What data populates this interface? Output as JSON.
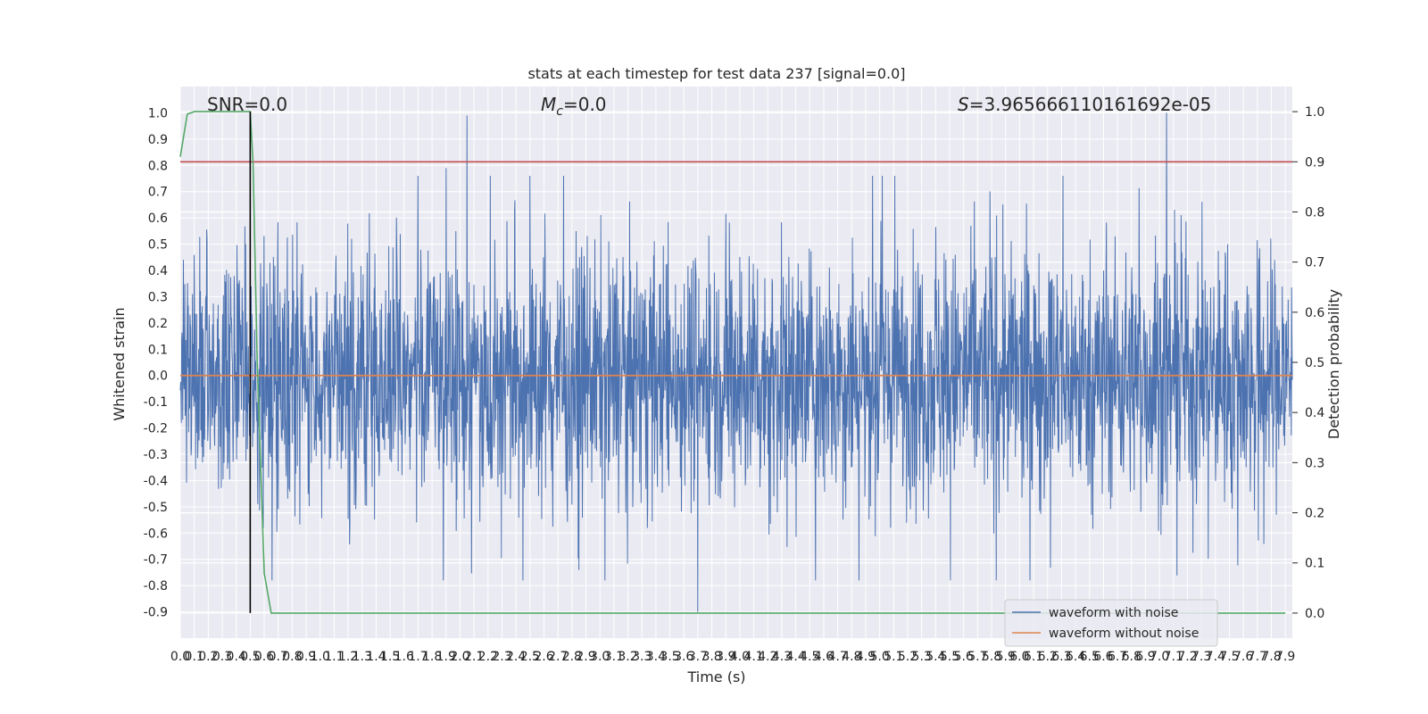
{
  "chart_data": {
    "type": "line",
    "title": "stats at each timestep for test data 237 [signal=0.0]",
    "xlabel": "Time (s)",
    "ylabel": "Whitened strain",
    "ylabel_right": "Detection probability",
    "xlim": [
      0.0,
      7.95
    ],
    "ylim": [
      -1.0,
      1.1
    ],
    "ylim_right": [
      -0.05,
      1.05
    ],
    "x_ticks": [
      "0.0",
      "0.1",
      "0.2",
      "0.3",
      "0.4",
      "0.5",
      "0.6",
      "0.7",
      "0.8",
      "0.9",
      "1.0",
      "1.1",
      "1.2",
      "1.3",
      "1.4",
      "1.5",
      "1.6",
      "1.7",
      "1.8",
      "1.9",
      "2.0",
      "2.1",
      "2.2",
      "2.3",
      "2.4",
      "2.5",
      "2.6",
      "2.7",
      "2.8",
      "2.9",
      "3.0",
      "3.1",
      "3.2",
      "3.3",
      "3.4",
      "3.5",
      "3.6",
      "3.7",
      "3.8",
      "3.9",
      "4.0",
      "4.1",
      "4.2",
      "4.3",
      "4.4",
      "4.5",
      "4.6",
      "4.7",
      "4.8",
      "4.9",
      "5.0",
      "5.1",
      "5.2",
      "5.3",
      "5.4",
      "5.5",
      "5.6",
      "5.7",
      "5.8",
      "5.9",
      "6.0",
      "6.1",
      "6.2",
      "6.3",
      "6.4",
      "6.5",
      "6.6",
      "6.7",
      "6.8",
      "6.9",
      "7.0",
      "7.1",
      "7.2",
      "7.3",
      "7.4",
      "7.5",
      "7.6",
      "7.7",
      "7.8",
      "7.9"
    ],
    "y_ticks": [
      "-0.9",
      "-0.8",
      "-0.7",
      "-0.6",
      "-0.5",
      "-0.4",
      "-0.3",
      "-0.2",
      "-0.1",
      "0.0",
      "0.1",
      "0.2",
      "0.3",
      "0.4",
      "0.5",
      "0.6",
      "0.7",
      "0.8",
      "0.9",
      "1.0"
    ],
    "y_ticks_right": [
      "0.0",
      "0.1",
      "0.2",
      "0.3",
      "0.4",
      "0.5",
      "0.6",
      "0.7",
      "0.8",
      "0.9",
      "1.0"
    ],
    "annotations": {
      "snr": "SNR=0.0",
      "mc_symbol": "M",
      "mc_sub": "c",
      "mc_value": "=0.0",
      "s_symbol": "S",
      "s_value": "=3.965666110161692e-05"
    },
    "threshold_right": 0.9,
    "marker_time": 0.5,
    "legend_position": "lower right",
    "grid": true,
    "series": [
      {
        "name": "waveform with noise",
        "color": "#4c72b0",
        "axis": "left",
        "envelope": "dense noise spanning approx. -0.75..0.75 with spikes up to 0.99 near t=2.05 and t=7.05 and down to -0.9 near t=3.7"
      },
      {
        "name": "waveform without noise",
        "color": "#dd8452",
        "axis": "left",
        "x": [
          0.0,
          7.95
        ],
        "y": [
          0.0,
          0.0
        ]
      },
      {
        "color": "#55a868",
        "axis": "right",
        "x": [
          0.0,
          0.05,
          0.1,
          0.15,
          0.2,
          0.3,
          0.4,
          0.5,
          0.52,
          0.55,
          0.6,
          0.65,
          7.9
        ],
        "y": [
          0.91,
          0.995,
          1.0,
          1.0,
          1.0,
          1.0,
          1.0,
          1.0,
          0.9,
          0.5,
          0.08,
          0.0,
          0.0
        ]
      },
      {
        "color": "#c44e52",
        "axis": "right",
        "x": [
          0.0,
          7.95
        ],
        "y": [
          0.9,
          0.9
        ]
      }
    ]
  }
}
